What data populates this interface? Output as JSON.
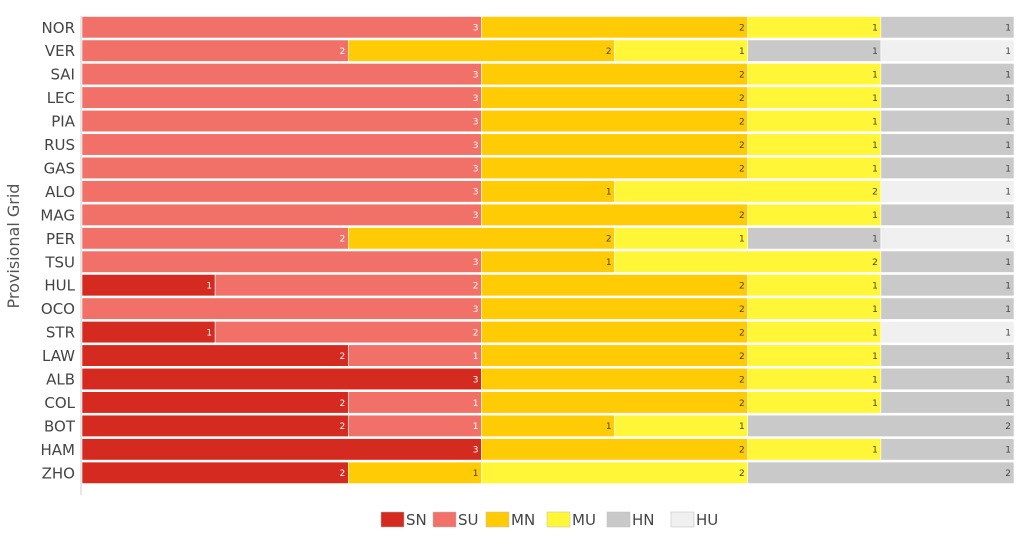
{
  "chart_data": {
    "type": "bar",
    "orientation": "horizontal",
    "stacked": true,
    "ylabel": "Provisional Grid",
    "categories": [
      "NOR",
      "VER",
      "SAI",
      "LEC",
      "PIA",
      "RUS",
      "GAS",
      "ALO",
      "MAG",
      "PER",
      "TSU",
      "HUL",
      "OCO",
      "STR",
      "LAW",
      "ALB",
      "COL",
      "BOT",
      "HAM",
      "ZHO"
    ],
    "series": [
      {
        "name": "SN",
        "color": "#d42a20",
        "values": [
          0,
          0,
          0,
          0,
          0,
          0,
          0,
          0,
          0,
          0,
          0,
          1,
          0,
          1,
          2,
          3,
          2,
          2,
          3,
          2
        ]
      },
      {
        "name": "SU",
        "color": "#f17068",
        "values": [
          3,
          2,
          3,
          3,
          3,
          3,
          3,
          3,
          3,
          2,
          3,
          2,
          3,
          2,
          1,
          0,
          1,
          1,
          0,
          0
        ]
      },
      {
        "name": "MN",
        "color": "#ffcb05",
        "values": [
          2,
          2,
          2,
          2,
          2,
          2,
          2,
          1,
          2,
          2,
          1,
          2,
          2,
          2,
          2,
          2,
          2,
          1,
          2,
          1
        ]
      },
      {
        "name": "MU",
        "color": "#fff637",
        "values": [
          1,
          1,
          1,
          1,
          1,
          1,
          1,
          2,
          1,
          1,
          2,
          1,
          1,
          1,
          1,
          1,
          1,
          1,
          1,
          2
        ]
      },
      {
        "name": "HN",
        "color": "#c9c9c9",
        "values": [
          1,
          1,
          1,
          1,
          1,
          1,
          1,
          0,
          1,
          1,
          1,
          1,
          1,
          0,
          1,
          1,
          1,
          2,
          1,
          2
        ]
      },
      {
        "name": "HU",
        "color": "#f0f0f0",
        "values": [
          0,
          1,
          0,
          0,
          0,
          0,
          0,
          1,
          0,
          1,
          0,
          0,
          0,
          1,
          0,
          0,
          0,
          0,
          0,
          0
        ]
      }
    ],
    "xlim": [
      0,
      7
    ],
    "legend_position": "bottom-center",
    "grid": false
  }
}
